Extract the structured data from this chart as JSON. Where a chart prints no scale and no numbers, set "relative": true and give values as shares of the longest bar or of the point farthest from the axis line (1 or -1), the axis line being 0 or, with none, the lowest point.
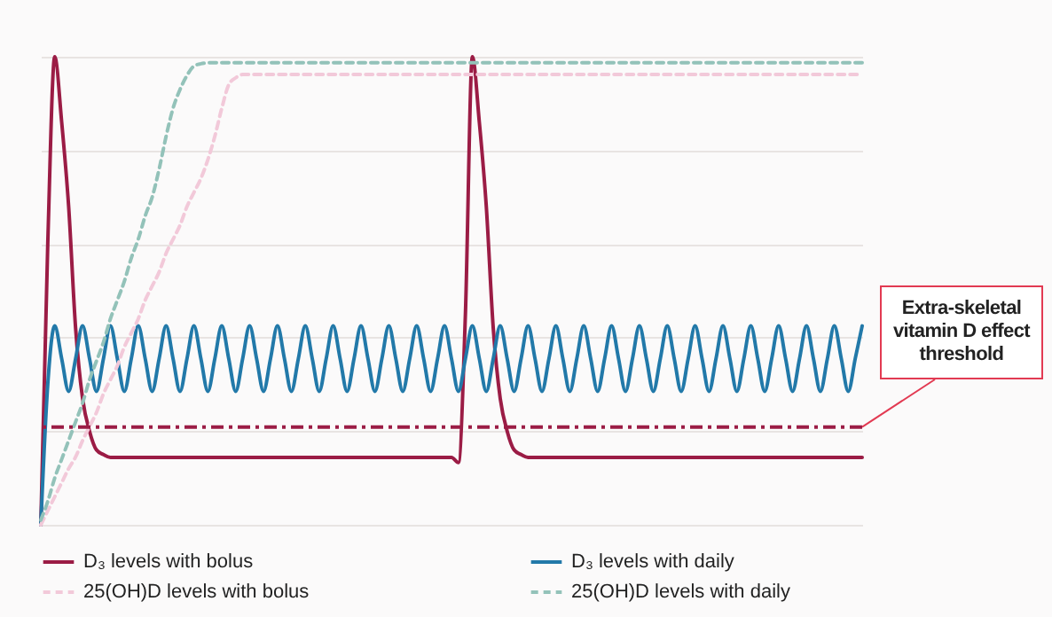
{
  "chart_data": {
    "type": "line",
    "relative": true,
    "grid": true,
    "legend": "bottom",
    "categories": [
      null,
      null,
      null,
      null,
      null,
      null,
      null,
      null,
      null,
      null,
      null,
      null,
      null,
      null,
      null,
      null,
      null,
      null,
      null,
      null,
      null,
      null,
      null,
      null,
      null,
      null,
      null,
      null,
      null,
      null,
      null,
      null,
      null,
      null,
      null,
      null,
      null,
      null,
      null,
      null,
      null,
      null,
      null,
      null,
      null,
      null,
      null,
      null,
      null,
      null,
      null,
      null,
      null,
      null,
      null,
      null,
      null,
      null,
      null,
      null,
      null,
      null,
      null,
      null,
      null,
      null,
      null,
      null,
      null,
      null,
      null,
      null,
      null,
      null,
      null,
      null,
      null,
      null,
      null,
      null,
      null,
      null,
      null,
      null,
      null,
      null,
      null,
      null,
      null,
      null,
      null,
      null,
      null,
      null,
      null,
      null,
      null,
      null,
      null,
      null,
      null,
      null,
      null,
      null,
      null,
      null,
      null,
      null,
      null,
      null,
      null,
      null,
      null,
      null,
      null,
      null,
      null,
      null,
      null
    ],
    "series": [
      {
        "name": "D₃ levels with bolus",
        "color": "#9b1c45",
        "line_style": "solid",
        "values": [
          0,
          0.6,
          1,
          0.86,
          0.68,
          0.42,
          0.27,
          0.2,
          0.16,
          0.15,
          0.144,
          0.144,
          0.144,
          0.144,
          0.144,
          0.144,
          0.144,
          0.144,
          0.144,
          0.144,
          0.144,
          0.144,
          0.144,
          0.144,
          0.144,
          0.144,
          0.144,
          0.144,
          0.144,
          0.144,
          0.144,
          0.144,
          0.144,
          0.144,
          0.144,
          0.144,
          0.144,
          0.144,
          0.144,
          0.144,
          0.144,
          0.144,
          0.144,
          0.144,
          0.144,
          0.144,
          0.144,
          0.144,
          0.144,
          0.144,
          0.144,
          0.144,
          0.144,
          0.144,
          0.144,
          0.144,
          0.144,
          0.144,
          0.144,
          0.144,
          0.133,
          0.45,
          1,
          0.86,
          0.68,
          0.42,
          0.27,
          0.2,
          0.16,
          0.15,
          0.144,
          0.144,
          0.144,
          0.144,
          0.144,
          0.144,
          0.144,
          0.144,
          0.144,
          0.144,
          0.144,
          0.144,
          0.144,
          0.144,
          0.144,
          0.144,
          0.144,
          0.144,
          0.144,
          0.144,
          0.144,
          0.144,
          0.144,
          0.144,
          0.144,
          0.144,
          0.144,
          0.144,
          0.144,
          0.144,
          0.144,
          0.144,
          0.144,
          0.144,
          0.144,
          0.144,
          0.144,
          0.144,
          0.144,
          0.144,
          0.144,
          0.144,
          0.144,
          0.144,
          0.144,
          0.144,
          0.144,
          0.144,
          0.144
        ]
      },
      {
        "name": "D₃ levels with daily",
        "color": "#2279a9",
        "line_style": "solid",
        "values": [
          0,
          0.3,
          0.425,
          0.355,
          0.285,
          0.355,
          0.425,
          0.355,
          0.285,
          0.355,
          0.425,
          0.355,
          0.285,
          0.355,
          0.425,
          0.355,
          0.285,
          0.355,
          0.425,
          0.355,
          0.285,
          0.355,
          0.425,
          0.355,
          0.285,
          0.355,
          0.425,
          0.355,
          0.285,
          0.355,
          0.425,
          0.355,
          0.285,
          0.355,
          0.425,
          0.355,
          0.285,
          0.355,
          0.425,
          0.355,
          0.285,
          0.355,
          0.425,
          0.355,
          0.285,
          0.355,
          0.425,
          0.355,
          0.285,
          0.355,
          0.425,
          0.355,
          0.285,
          0.355,
          0.425,
          0.355,
          0.285,
          0.355,
          0.425,
          0.355,
          0.285,
          0.355,
          0.425,
          0.355,
          0.285,
          0.355,
          0.425,
          0.355,
          0.285,
          0.355,
          0.425,
          0.355,
          0.285,
          0.355,
          0.425,
          0.355,
          0.285,
          0.355,
          0.425,
          0.355,
          0.285,
          0.355,
          0.425,
          0.355,
          0.285,
          0.355,
          0.425,
          0.355,
          0.285,
          0.355,
          0.425,
          0.355,
          0.285,
          0.355,
          0.425,
          0.355,
          0.285,
          0.355,
          0.425,
          0.355,
          0.285,
          0.355,
          0.425,
          0.355,
          0.285,
          0.355,
          0.425,
          0.355,
          0.285,
          0.355,
          0.425,
          0.355,
          0.285,
          0.355,
          0.425,
          0.355,
          0.285,
          0.355,
          0.425
        ]
      },
      {
        "name": "25(OH)D levels with bolus",
        "color": "#f2c9d9",
        "line_style": "dashed",
        "values": [
          0,
          0.03,
          0.06,
          0.09,
          0.12,
          0.145,
          0.18,
          0.21,
          0.24,
          0.28,
          0.31,
          0.34,
          0.38,
          0.41,
          0.44,
          0.48,
          0.51,
          0.54,
          0.58,
          0.61,
          0.64,
          0.68,
          0.71,
          0.74,
          0.78,
          0.83,
          0.89,
          0.94,
          0.955,
          0.962,
          0.962,
          0.962,
          0.962,
          0.962,
          0.962,
          0.962,
          0.962,
          0.962,
          0.962,
          0.962,
          0.962,
          0.962,
          0.962,
          0.962,
          0.962,
          0.962,
          0.962,
          0.962,
          0.962,
          0.962,
          0.962,
          0.962,
          0.962,
          0.962,
          0.962,
          0.962,
          0.962,
          0.962,
          0.962,
          0.962,
          0.962,
          0.962,
          0.962,
          0.962,
          0.962,
          0.962,
          0.962,
          0.962,
          0.962,
          0.962,
          0.962,
          0.962,
          0.962,
          0.962,
          0.962,
          0.962,
          0.962,
          0.962,
          0.962,
          0.962,
          0.962,
          0.962,
          0.962,
          0.962,
          0.962,
          0.962,
          0.962,
          0.962,
          0.962,
          0.962,
          0.962,
          0.962,
          0.962,
          0.962,
          0.962,
          0.962,
          0.962,
          0.962,
          0.962,
          0.962,
          0.962,
          0.962,
          0.962,
          0.962,
          0.962,
          0.962,
          0.962,
          0.962,
          0.962,
          0.962,
          0.962,
          0.962,
          0.962,
          0.962,
          0.962,
          0.962,
          0.962,
          0.962,
          0.962
        ]
      },
      {
        "name": "25(OH)D levels with daily",
        "color": "#93c2b9",
        "line_style": "dashed",
        "values": [
          0.01,
          0.05,
          0.1,
          0.14,
          0.18,
          0.22,
          0.26,
          0.31,
          0.35,
          0.39,
          0.44,
          0.48,
          0.52,
          0.57,
          0.61,
          0.66,
          0.7,
          0.76,
          0.83,
          0.89,
          0.93,
          0.96,
          0.98,
          0.985,
          0.987,
          0.987,
          0.987,
          0.987,
          0.987,
          0.987,
          0.987,
          0.987,
          0.987,
          0.987,
          0.987,
          0.987,
          0.987,
          0.987,
          0.987,
          0.987,
          0.987,
          0.987,
          0.987,
          0.987,
          0.987,
          0.987,
          0.987,
          0.987,
          0.987,
          0.987,
          0.987,
          0.987,
          0.987,
          0.987,
          0.987,
          0.987,
          0.987,
          0.987,
          0.987,
          0.987,
          0.987,
          0.987,
          0.987,
          0.987,
          0.987,
          0.987,
          0.987,
          0.987,
          0.987,
          0.987,
          0.987,
          0.987,
          0.987,
          0.987,
          0.987,
          0.987,
          0.987,
          0.987,
          0.987,
          0.987,
          0.987,
          0.987,
          0.987,
          0.987,
          0.987,
          0.987,
          0.987,
          0.987,
          0.987,
          0.987,
          0.987,
          0.987,
          0.987,
          0.987,
          0.987,
          0.987,
          0.987,
          0.987,
          0.987,
          0.987,
          0.987,
          0.987,
          0.987,
          0.987,
          0.987,
          0.987,
          0.987,
          0.987,
          0.987,
          0.987,
          0.987,
          0.987,
          0.987,
          0.987,
          0.987,
          0.987,
          0.987,
          0.987,
          0.987
        ]
      }
    ],
    "ref_lines": [
      {
        "axis": "y",
        "value": 0.209,
        "label": "Extra-skeletal vitamin D effect threshold",
        "color": "#9b1c45",
        "line_style": "dashdot"
      }
    ]
  }
}
